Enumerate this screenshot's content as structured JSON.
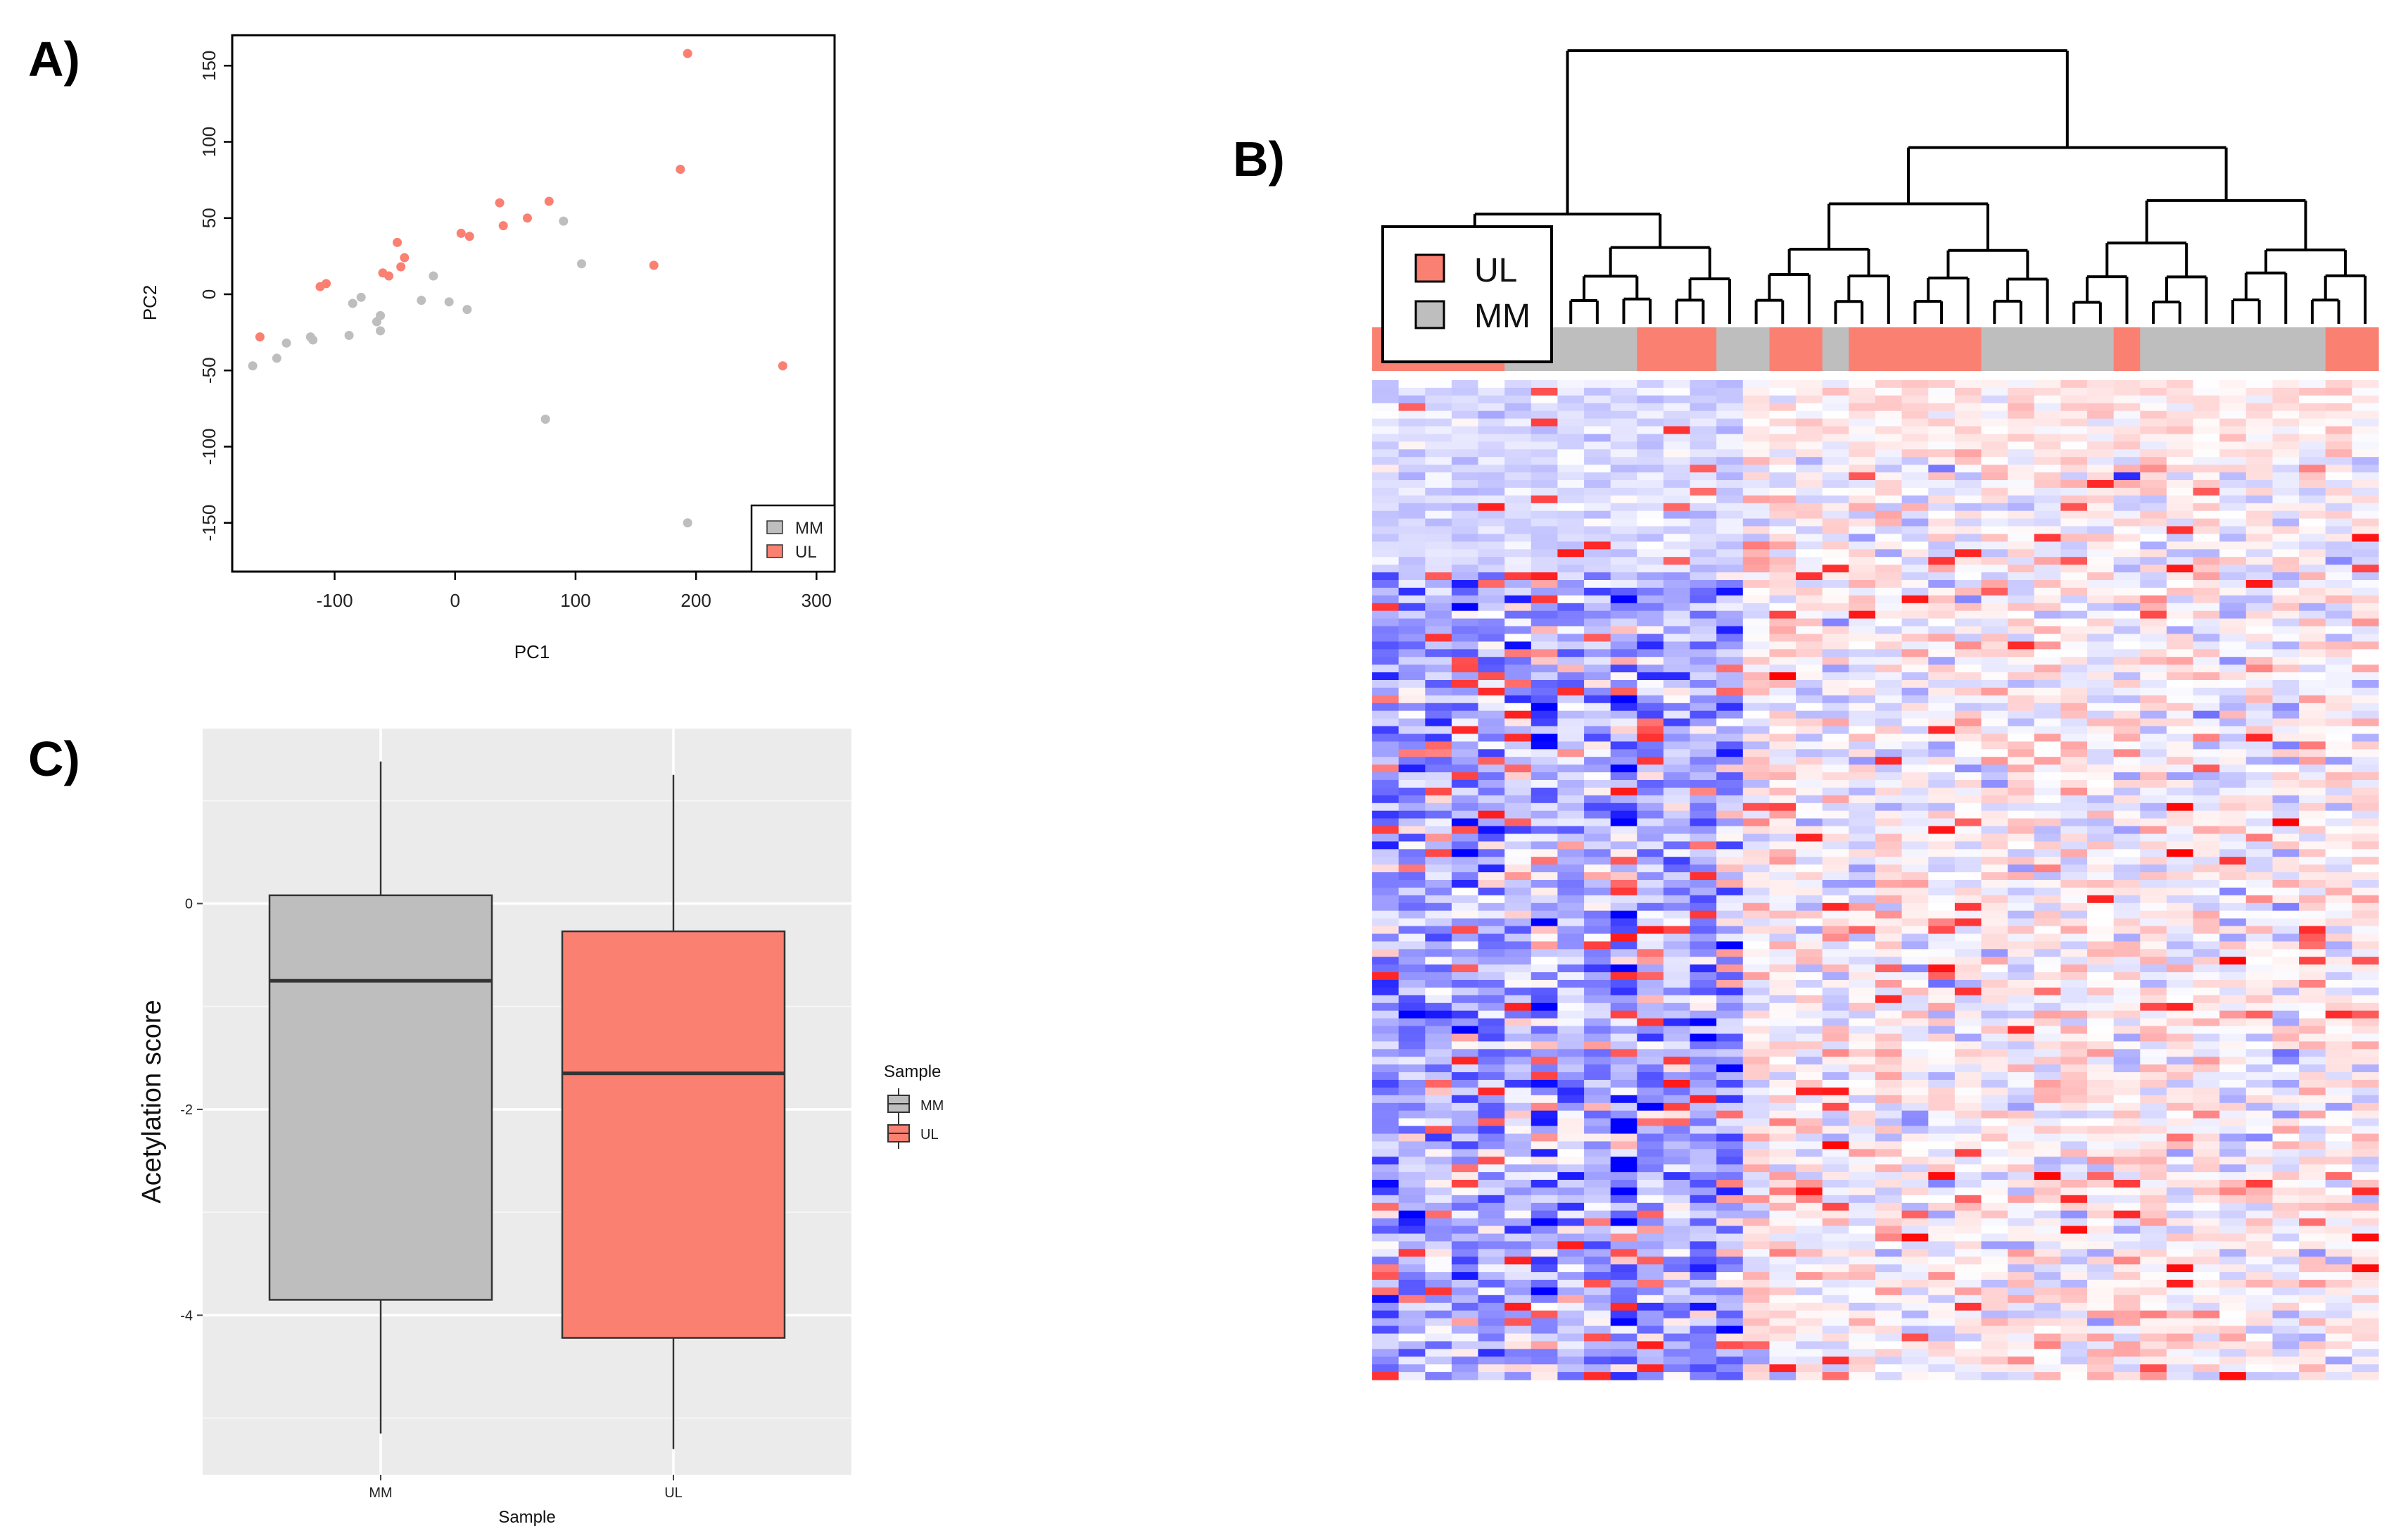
{
  "colors": {
    "MM": "#bebebe",
    "UL": "#fa8072",
    "ggplot_bg": "#ebebeb",
    "heat_low": "#0000ff",
    "heat_mid": "#ffffff",
    "heat_high": "#ff0000"
  },
  "panels": {
    "A": {
      "label": "A)"
    },
    "B": {
      "label": "B)"
    },
    "C": {
      "label": "C)"
    }
  },
  "chart_data": [
    {
      "id": "A",
      "type": "scatter",
      "title": "",
      "xlabel": "PC1",
      "ylabel": "PC2",
      "xlim": [
        -185,
        315
      ],
      "ylim": [
        -182,
        170
      ],
      "xticks": [
        -100,
        0,
        100,
        200,
        300
      ],
      "xtick_labels": [
        "-100",
        "0",
        "100",
        "200",
        "300"
      ],
      "yticks": [
        -150,
        -100,
        -50,
        0,
        50,
        100,
        150
      ],
      "ytick_labels": [
        "-150",
        "-100",
        "-50",
        "0",
        "50",
        "100",
        "150"
      ],
      "legend": {
        "position": "bottom-right",
        "entries": [
          "MM",
          "UL"
        ]
      },
      "series": [
        {
          "name": "MM",
          "points": [
            [
              -168,
              -47
            ],
            [
              -148,
              -42
            ],
            [
              -140,
              -32
            ],
            [
              -120,
              -28
            ],
            [
              -118,
              -30
            ],
            [
              -88,
              -27
            ],
            [
              -85,
              -6
            ],
            [
              -78,
              -2
            ],
            [
              -65,
              -18
            ],
            [
              -62,
              -14
            ],
            [
              -62,
              -24
            ],
            [
              -28,
              -4
            ],
            [
              -18,
              12
            ],
            [
              -5,
              -5
            ],
            [
              10,
              -10
            ],
            [
              75,
              -82
            ],
            [
              90,
              48
            ],
            [
              105,
              20
            ],
            [
              193,
              -150
            ]
          ]
        },
        {
          "name": "UL",
          "points": [
            [
              -162,
              -28
            ],
            [
              -112,
              5
            ],
            [
              -107,
              7
            ],
            [
              -60,
              14
            ],
            [
              -55,
              12
            ],
            [
              -48,
              34
            ],
            [
              -45,
              18
            ],
            [
              -42,
              24
            ],
            [
              5,
              40
            ],
            [
              12,
              38
            ],
            [
              37,
              60
            ],
            [
              40,
              45
            ],
            [
              60,
              50
            ],
            [
              78,
              61
            ],
            [
              165,
              19
            ],
            [
              187,
              82
            ],
            [
              193,
              158
            ],
            [
              272,
              -47
            ]
          ]
        }
      ]
    },
    {
      "id": "B",
      "type": "heatmap",
      "title": "",
      "legend": {
        "position": "top-left",
        "entries": [
          "UL",
          "MM"
        ]
      },
      "n_columns": 38,
      "n_rows": 130,
      "column_groups": [
        "UL",
        "UL",
        "UL",
        "UL",
        "UL",
        "MM",
        "MM",
        "MM",
        "MM",
        "MM",
        "UL",
        "UL",
        "UL",
        "MM",
        "MM",
        "UL",
        "UL",
        "MM",
        "UL",
        "UL",
        "UL",
        "UL",
        "UL",
        "MM",
        "MM",
        "MM",
        "MM",
        "MM",
        "UL",
        "MM",
        "MM",
        "MM",
        "MM",
        "MM",
        "MM",
        "MM",
        "UL",
        "UL"
      ],
      "value_range": [
        -1,
        1
      ],
      "dendrogram": "hierarchical clustering of columns (two main clusters)"
    },
    {
      "id": "C",
      "type": "box",
      "title": "",
      "xlabel": "Sample",
      "ylabel": "Acetylation score",
      "ylim": [
        -5.55,
        1.7
      ],
      "yticks": [
        0,
        -2,
        -4
      ],
      "ytick_labels": [
        "0",
        "-2",
        "-4"
      ],
      "categories": [
        "MM",
        "UL"
      ],
      "boxes": [
        {
          "name": "MM",
          "whisker_low": -5.15,
          "q1": -3.85,
          "median": -0.75,
          "q3": 0.08,
          "whisker_high": 1.38
        },
        {
          "name": "UL",
          "whisker_low": -5.3,
          "q1": -4.22,
          "median": -1.65,
          "q3": -0.27,
          "whisker_high": 1.25
        }
      ],
      "legend": {
        "position": "right",
        "title": "Sample",
        "entries": [
          "MM",
          "UL"
        ]
      }
    }
  ]
}
